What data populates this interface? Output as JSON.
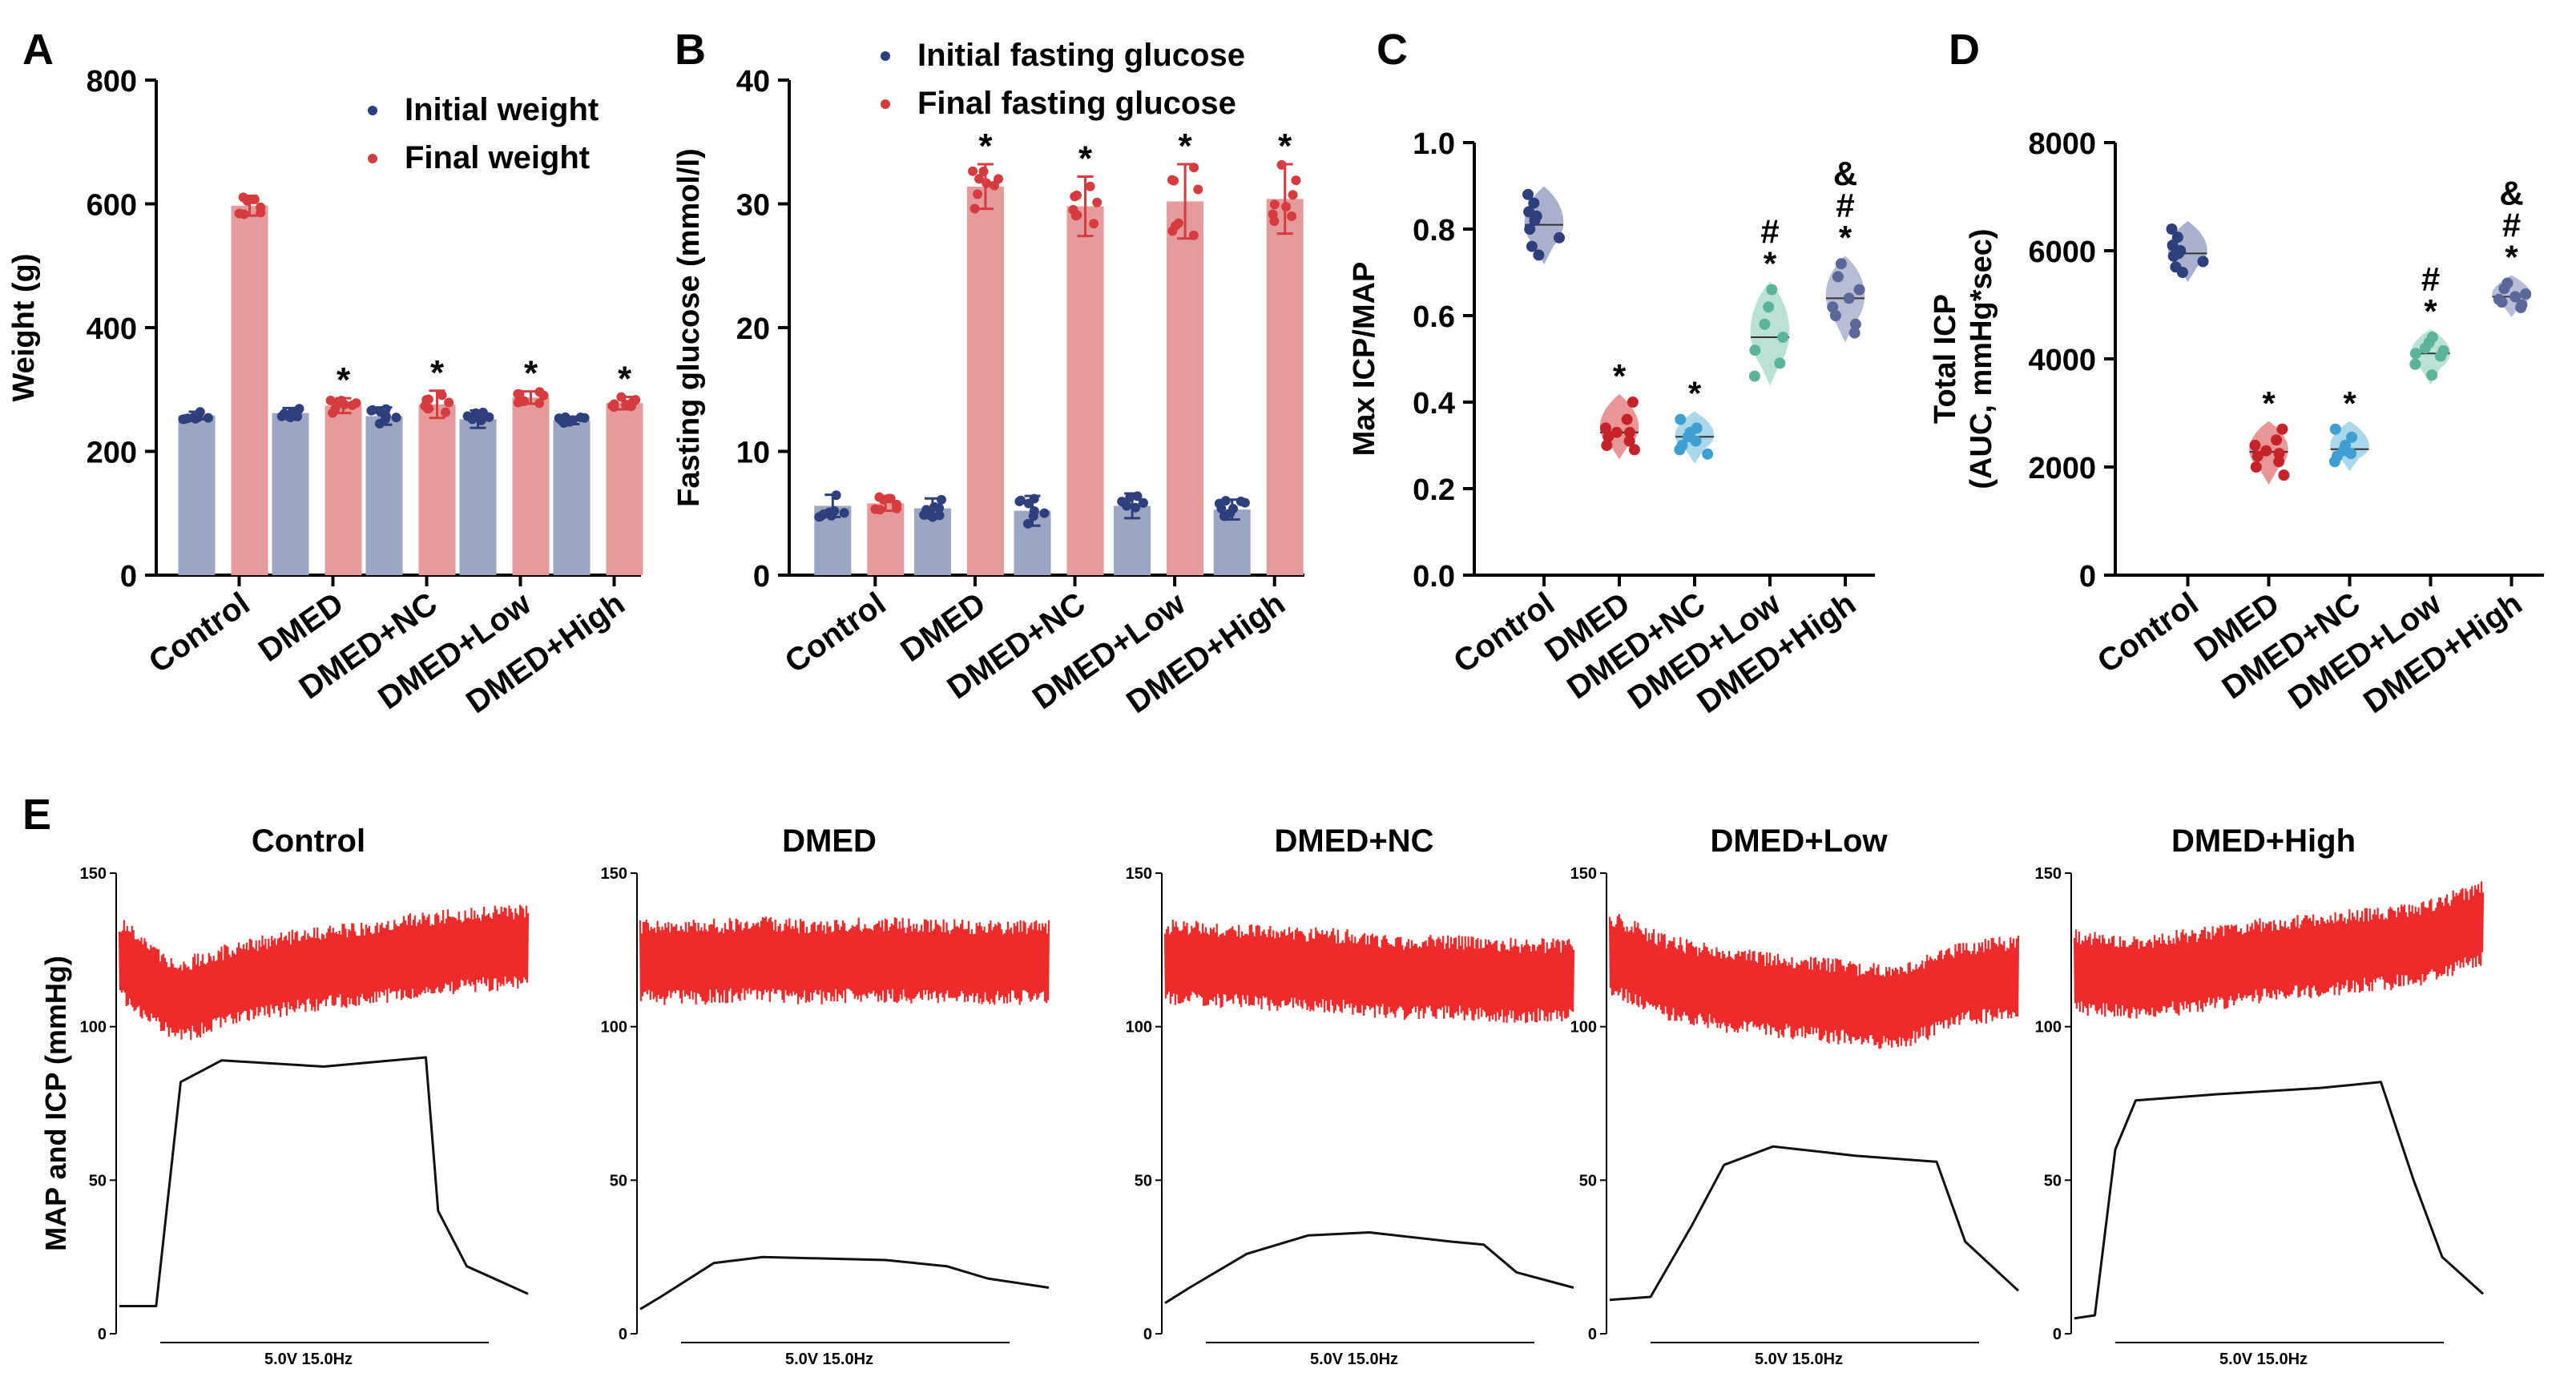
{
  "colors": {
    "initial_bar": "#9aa6c2",
    "initial_dot": "#2d3f7c",
    "final_bar": "#e59a9b",
    "final_dot": "#d63b3f",
    "control_violin": "#8b96b9",
    "control_dot": "#2d3f7c",
    "dmed_violin": "#e07373",
    "dmed_dot": "#c52329",
    "nc_violin": "#8fc9e4",
    "nc_dot": "#3e9fd0",
    "low_violin": "#a3d8c6",
    "low_dot": "#5bb49a",
    "high_violin": "#9fa7c6",
    "high_dot": "#5a6799",
    "trace_map": "#ee2a2a",
    "trace_icp": "#111111"
  },
  "panels": {
    "A": {
      "letter": "A"
    },
    "B": {
      "letter": "B"
    },
    "C": {
      "letter": "C"
    },
    "D": {
      "letter": "D"
    },
    "E": {
      "letter": "E"
    }
  },
  "groups": [
    "Control",
    "DMED",
    "DMED+NC",
    "DMED+Low",
    "DMED+High"
  ],
  "chart_data": [
    {
      "id": "A",
      "type": "bar",
      "ylabel": "Weight (g)",
      "ylim": [
        0,
        800
      ],
      "yticks": [
        "0",
        "200",
        "400",
        "600",
        "800"
      ],
      "categories": [
        "Control",
        "DMED",
        "DMED+NC",
        "DMED+Low",
        "DMED+High"
      ],
      "series": [
        {
          "name": "Initial weight",
          "values": [
            258,
            262,
            257,
            252,
            250
          ]
        },
        {
          "name": "Final weight",
          "values": [
            597,
            274,
            276,
            287,
            278
          ]
        }
      ],
      "errors": [
        [
          6,
          8,
          14,
          14,
          6
        ],
        [
          16,
          12,
          22,
          10,
          10
        ]
      ],
      "annotations": [
        "",
        "*",
        "*",
        "*",
        "*"
      ],
      "legend": "top-right"
    },
    {
      "id": "B",
      "type": "bar",
      "ylabel": "Fasting glucose (mmol/l)",
      "ylim": [
        0,
        40
      ],
      "yticks": [
        "0",
        "10",
        "20",
        "30",
        "40"
      ],
      "categories": [
        "Control",
        "DMED",
        "DMED+NC",
        "DMED+Low",
        "DMED+High"
      ],
      "series": [
        {
          "name": "Initial fasting glucose",
          "values": [
            5.6,
            5.4,
            5.2,
            5.6,
            5.3
          ]
        },
        {
          "name": "Final fasting glucose",
          "values": [
            5.8,
            31.4,
            29.8,
            30.2,
            30.4
          ]
        }
      ],
      "errors": [
        [
          0.9,
          0.8,
          1.2,
          1.0,
          0.8
        ],
        [
          0.6,
          1.8,
          2.4,
          3.0,
          2.8
        ]
      ],
      "annotations": [
        "",
        "*",
        "*",
        "*",
        "*"
      ],
      "legend": "top"
    },
    {
      "id": "C",
      "type": "scatter",
      "ylabel": "Max ICP/MAP",
      "ylim": [
        0.0,
        1.0
      ],
      "yticks": [
        "0.0",
        "0.2",
        "0.4",
        "0.6",
        "0.8",
        "1.0"
      ],
      "categories": [
        "Control",
        "DMED",
        "DMED+NC",
        "DMED+Low",
        "DMED+High"
      ],
      "points": [
        [
          0.88,
          0.86,
          0.84,
          0.83,
          0.82,
          0.8,
          0.78,
          0.76,
          0.74
        ],
        [
          0.4,
          0.36,
          0.34,
          0.33,
          0.33,
          0.32,
          0.31,
          0.3,
          0.29
        ],
        [
          0.36,
          0.34,
          0.33,
          0.32,
          0.31,
          0.3,
          0.29,
          0.28
        ],
        [
          0.66,
          0.62,
          0.58,
          0.55,
          0.52,
          0.49,
          0.46
        ],
        [
          0.72,
          0.69,
          0.66,
          0.64,
          0.62,
          0.6,
          0.58,
          0.56
        ]
      ],
      "means": [
        0.81,
        0.33,
        0.32,
        0.55,
        0.64
      ],
      "annotations": [
        [],
        [
          "*"
        ],
        [
          "*"
        ],
        [
          "*",
          "#"
        ],
        [
          "*",
          "#",
          "&"
        ]
      ]
    },
    {
      "id": "D",
      "type": "scatter",
      "ylabel": "Total ICP",
      "ylabel2": "(AUC, mmHg*sec)",
      "ylim": [
        0,
        8000
      ],
      "yticks": [
        "0",
        "2000",
        "4000",
        "6000",
        "8000"
      ],
      "categories": [
        "Control",
        "DMED",
        "DMED+NC",
        "DMED+Low",
        "DMED+High"
      ],
      "points": [
        [
          6400,
          6250,
          6100,
          6000,
          5950,
          5900,
          5800,
          5700,
          5600
        ],
        [
          2700,
          2500,
          2400,
          2300,
          2250,
          2200,
          2100,
          2000,
          1850
        ],
        [
          2700,
          2550,
          2400,
          2300,
          2250,
          2200,
          2100
        ],
        [
          4400,
          4300,
          4200,
          4150,
          4100,
          4050,
          3900,
          3700
        ],
        [
          5400,
          5300,
          5200,
          5150,
          5100,
          5050,
          5000,
          4950
        ]
      ],
      "means": [
        5950,
        2280,
        2330,
        4100,
        5150
      ],
      "annotations": [
        [],
        [
          "*"
        ],
        [
          "*"
        ],
        [
          "*",
          "#"
        ],
        [
          "*",
          "#",
          "&"
        ]
      ]
    },
    {
      "id": "E",
      "type": "line",
      "ylabel": "MAP and ICP (mmHg)",
      "ylim": [
        0,
        150
      ],
      "yticks": [
        "0",
        "50",
        "100",
        "150"
      ],
      "stim_label": "5.0V 15.0Hz",
      "traces": [
        {
          "title": "Control",
          "map_baseline": [
            122,
            108,
            114,
            118,
            120,
            123,
            125,
            126
          ],
          "icp": [
            [
              0,
              9
            ],
            [
              0.09,
              9
            ],
            [
              0.15,
              82
            ],
            [
              0.25,
              89
            ],
            [
              0.5,
              87
            ],
            [
              0.75,
              90
            ],
            [
              0.78,
              40
            ],
            [
              0.85,
              22
            ],
            [
              1,
              13
            ]
          ]
        },
        {
          "title": "DMED",
          "map_baseline": [
            121,
            121,
            122,
            121,
            122,
            121,
            121,
            121
          ],
          "icp": [
            [
              0,
              8
            ],
            [
              0.05,
              12
            ],
            [
              0.18,
              23
            ],
            [
              0.3,
              25
            ],
            [
              0.6,
              24
            ],
            [
              0.75,
              22
            ],
            [
              0.85,
              18
            ],
            [
              1,
              15
            ]
          ]
        },
        {
          "title": "DMED+NC",
          "map_baseline": [
            121,
            120,
            119,
            118,
            116,
            116,
            115,
            115
          ],
          "icp": [
            [
              0,
              10
            ],
            [
              0.06,
              15
            ],
            [
              0.2,
              26
            ],
            [
              0.35,
              32
            ],
            [
              0.5,
              33
            ],
            [
              0.7,
              30
            ],
            [
              0.78,
              29
            ],
            [
              0.86,
              20
            ],
            [
              1,
              15
            ]
          ]
        },
        {
          "title": "DMED+Low",
          "map_baseline": [
            124,
            116,
            112,
            110,
            108,
            106,
            114,
            116
          ],
          "icp": [
            [
              0,
              11
            ],
            [
              0.1,
              12
            ],
            [
              0.2,
              35
            ],
            [
              0.28,
              55
            ],
            [
              0.4,
              61
            ],
            [
              0.6,
              58
            ],
            [
              0.8,
              56
            ],
            [
              0.87,
              30
            ],
            [
              1,
              14
            ]
          ]
        },
        {
          "title": "DMED+High",
          "map_baseline": [
            118,
            116,
            118,
            121,
            123,
            125,
            127,
            134
          ],
          "icp": [
            [
              0,
              5
            ],
            [
              0.05,
              6
            ],
            [
              0.1,
              60
            ],
            [
              0.15,
              76
            ],
            [
              0.35,
              78
            ],
            [
              0.6,
              80
            ],
            [
              0.75,
              82
            ],
            [
              0.83,
              50
            ],
            [
              0.9,
              25
            ],
            [
              1,
              13
            ]
          ]
        }
      ]
    }
  ]
}
